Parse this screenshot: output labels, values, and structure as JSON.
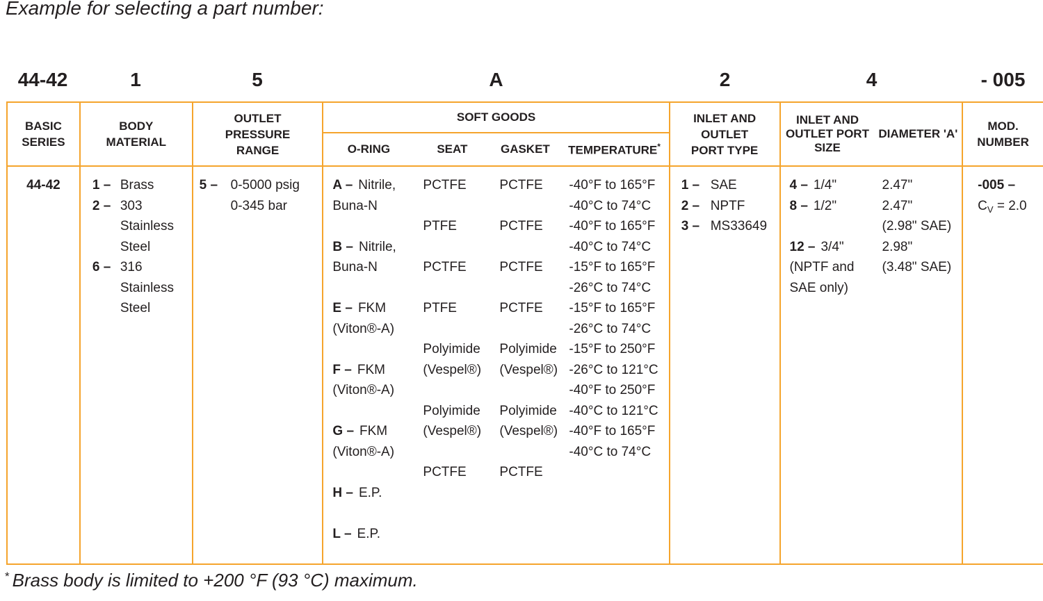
{
  "page": {
    "title": "Example for selecting a part number:",
    "footnote_mark": "*",
    "footnote_text": "Brass body is limited to +200 °F (93 °C) maximum.",
    "accent_color": "#F5A42C",
    "text_color": "#231F20"
  },
  "example_row": {
    "basic_series": "44-42",
    "body_material": "1",
    "outlet_pressure": "5",
    "soft_goods": "A",
    "port_type": "2",
    "port_size": "4",
    "mod_number": "- 005"
  },
  "header": {
    "basic_series": "BASIC\nSERIES",
    "body_material": "BODY\nMATERIAL",
    "outlet_pressure": "OUTLET\nPRESSURE\nRANGE",
    "soft_goods": "SOFT GOODS",
    "o_ring": "O-RING",
    "seat": "SEAT",
    "gasket": "GASKET",
    "temperature": "TEMPERATURE",
    "temperature_mark": "*",
    "port_type": "INLET AND\nOUTLET\nPORT TYPE",
    "port_size": "INLET AND\nOUTLET\nPORT SIZE",
    "diameter": "DIAMETER\n'A'",
    "mod_number": "MOD.\nNUMBER"
  },
  "body": {
    "basic_series": "44-42",
    "body_material": [
      {
        "b": "1 –",
        "t": "Brass"
      },
      {
        "b": "2 –",
        "t": "303"
      },
      {
        "b": "",
        "t": "Stainless"
      },
      {
        "b": "",
        "t": "Steel"
      },
      {
        "b": "6 –",
        "t": "316"
      },
      {
        "b": "",
        "t": "Stainless"
      },
      {
        "b": "",
        "t": "Steel"
      }
    ],
    "outlet_pressure": [
      {
        "b": "5 –",
        "t": "0-5000 psig"
      },
      {
        "b": "",
        "t": "0-345 bar"
      }
    ],
    "o_ring": [
      {
        "b": "A –",
        "t": "Nitrile,"
      },
      {
        "b": "",
        "t": "Buna-N"
      },
      {
        "b": "",
        "t": ""
      },
      {
        "b": "B –",
        "t": "Nitrile,"
      },
      {
        "b": "",
        "t": "Buna-N"
      },
      {
        "b": "",
        "t": ""
      },
      {
        "b": "E –",
        "t": "FKM"
      },
      {
        "b": "",
        "t": "(Viton®-A)"
      },
      {
        "b": "",
        "t": ""
      },
      {
        "b": "F –",
        "t": "FKM"
      },
      {
        "b": "",
        "t": "(Viton®-A)"
      },
      {
        "b": "",
        "t": ""
      },
      {
        "b": "G –",
        "t": "FKM"
      },
      {
        "b": "",
        "t": "(Viton®-A)"
      },
      {
        "b": "",
        "t": ""
      },
      {
        "b": "H –",
        "t": "E.P."
      },
      {
        "b": "",
        "t": ""
      },
      {
        "b": "L –",
        "t": "E.P."
      }
    ],
    "seat": [
      "PCTFE",
      "",
      "PTFE",
      "",
      "PCTFE",
      "",
      "PTFE",
      "",
      "Polyimide",
      "(Vespel®)",
      "",
      "Polyimide",
      "(Vespel®)",
      "",
      "PCTFE",
      "",
      "",
      ""
    ],
    "gasket": [
      "PCTFE",
      "",
      "PCTFE",
      "",
      "PCTFE",
      "",
      "PCTFE",
      "",
      "Polyimide",
      "(Vespel®)",
      "",
      "Polyimide",
      "(Vespel®)",
      "",
      "PCTFE",
      "",
      "",
      ""
    ],
    "temperature": [
      "-40°F to 165°F",
      "-40°C to 74°C",
      "-40°F to 165°F",
      "-40°C to 74°C",
      "-15°F to 165°F",
      "-26°C to 74°C",
      "-15°F to 165°F",
      "-26°C to 74°C",
      "-15°F to 250°F",
      "-26°C to 121°C",
      "-40°F to 250°F",
      "-40°C to 121°C",
      "-40°F to 165°F",
      "-40°C to 74°C",
      "",
      "",
      "",
      ""
    ],
    "port_type": [
      {
        "b": "1 –",
        "t": "SAE"
      },
      {
        "b": "2 –",
        "t": "NPTF"
      },
      {
        "b": "3 –",
        "t": "MS33649"
      }
    ],
    "port_size": [
      {
        "b": "4 –",
        "t": "1/4\""
      },
      {
        "b": "8 –",
        "t": "1/2\""
      },
      {
        "b": "",
        "t": ""
      },
      {
        "b": "12 –",
        "t": "3/4\""
      },
      {
        "b": "",
        "t": "(NPTF and"
      },
      {
        "b": "",
        "t": "SAE only)"
      }
    ],
    "diameter": [
      "2.47\"",
      "2.47\"",
      "(2.98\" SAE)",
      "2.98\"",
      "(3.48\" SAE)"
    ],
    "mod_number_line1": "-005 –",
    "cv_prefix": "C",
    "cv_sub": "V",
    "cv_rest": " = 2.0"
  }
}
